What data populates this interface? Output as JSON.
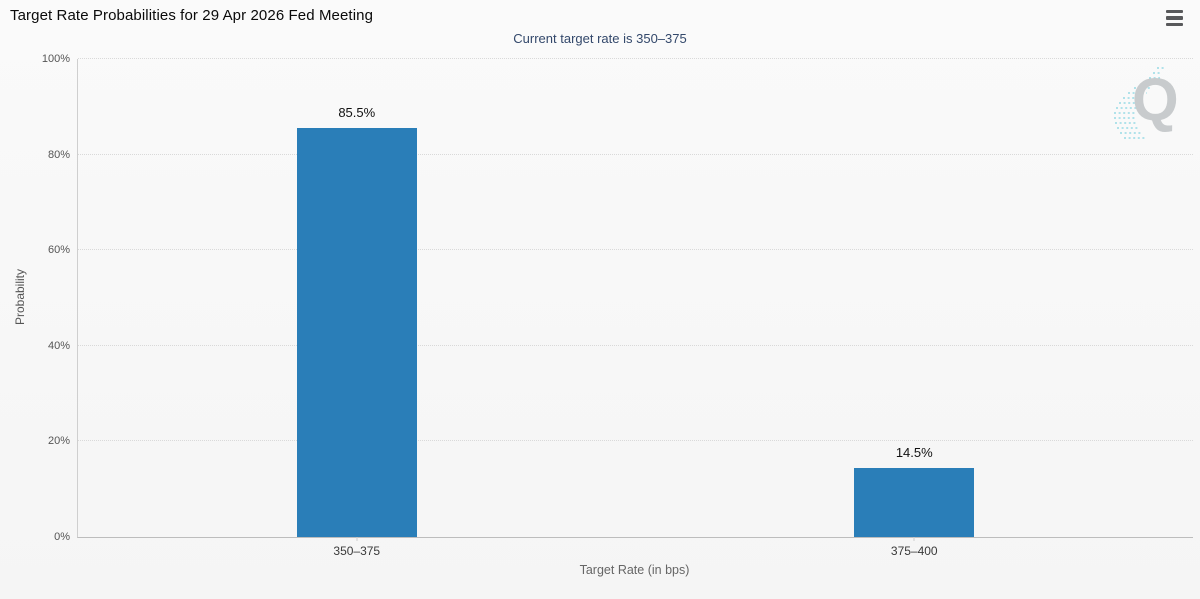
{
  "header": {
    "menu_tooltip": "menu"
  },
  "chart_data": {
    "type": "bar",
    "title": "Target Rate Probabilities for 29 Apr 2026 Fed Meeting",
    "subtitle": "Current target rate is 350–375",
    "categories": [
      "350–375",
      "375–400"
    ],
    "values": [
      85.5,
      14.5
    ],
    "value_labels": [
      "85.5%",
      "14.5%"
    ],
    "xlabel": "Target Rate (in bps)",
    "ylabel": "Probability",
    "ylim": [
      0,
      100
    ],
    "ytick_step": 20,
    "ytick_suffix": "%",
    "legend": "none",
    "grid": "horizontal-dotted",
    "bar_color": "#2a7eb8"
  },
  "watermark": {
    "letter": "Q"
  },
  "colors": {
    "background": "#f7f7f7",
    "subtitle_text": "#33486b",
    "bar": "#2a7eb8",
    "axis_line": "#cfcfcf",
    "gridline": "#d9d9d9",
    "watermark_gray": "#c3c7c9",
    "watermark_cyan": "#8ed7e3"
  }
}
